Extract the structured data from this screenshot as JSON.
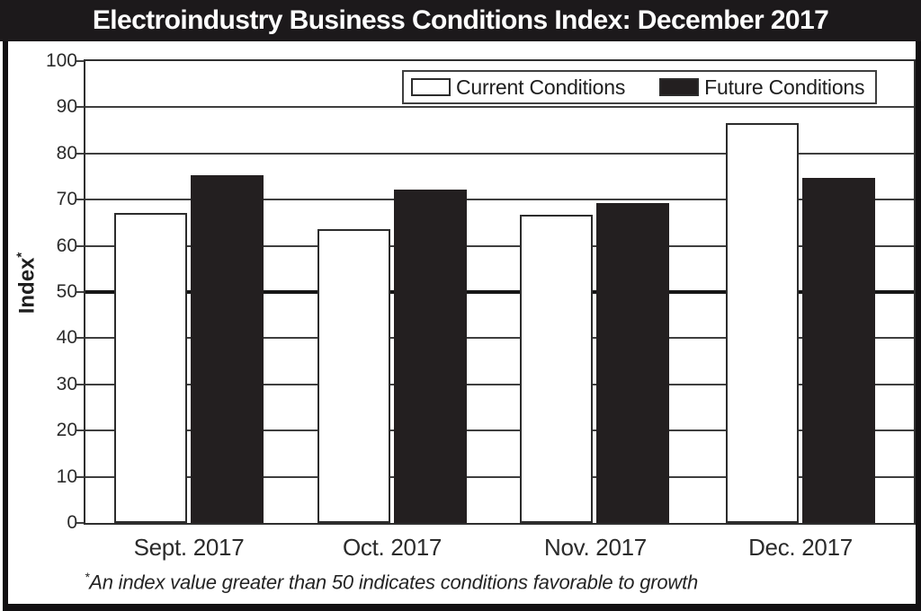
{
  "title": "Electroindustry Business Conditions Index: December 2017",
  "y_axis": {
    "label": "Index",
    "footnote_marker": "*",
    "ticks": [
      0,
      10,
      20,
      30,
      40,
      50,
      60,
      70,
      80,
      90,
      100
    ]
  },
  "footnote": {
    "marker": "*",
    "text": "An index value greater than 50 indicates conditions favorable to growth"
  },
  "chart_data": {
    "type": "bar",
    "title": "Electroindustry Business Conditions Index: December 2017",
    "categories": [
      "Sept. 2017",
      "Oct. 2017",
      "Nov. 2017",
      "Dec. 2017"
    ],
    "series": [
      {
        "name": "Current Conditions",
        "color": "#ffffff",
        "values": [
          67.1,
          63.6,
          66.7,
          86.5
        ]
      },
      {
        "name": "Future Conditions",
        "color": "#231f20",
        "values": [
          75.3,
          72.1,
          69.2,
          74.8
        ]
      }
    ],
    "xlabel": "",
    "ylabel": "Index*",
    "ylim": [
      0,
      100
    ],
    "ytick_step": 10,
    "grid": true,
    "reference_line": 50,
    "legend_position": "top-right",
    "footnote": "*An index value greater than 50 indicates conditions favorable to growth"
  },
  "colors": {
    "title_bg": "#1c191b",
    "title_text": "#ffffff",
    "bar_black": "#231f20",
    "bar_white": "#ffffff",
    "gridline": "#3f3f3f",
    "reference_line": "#161616",
    "frame": "#121012",
    "text": "#2b2b2b"
  }
}
